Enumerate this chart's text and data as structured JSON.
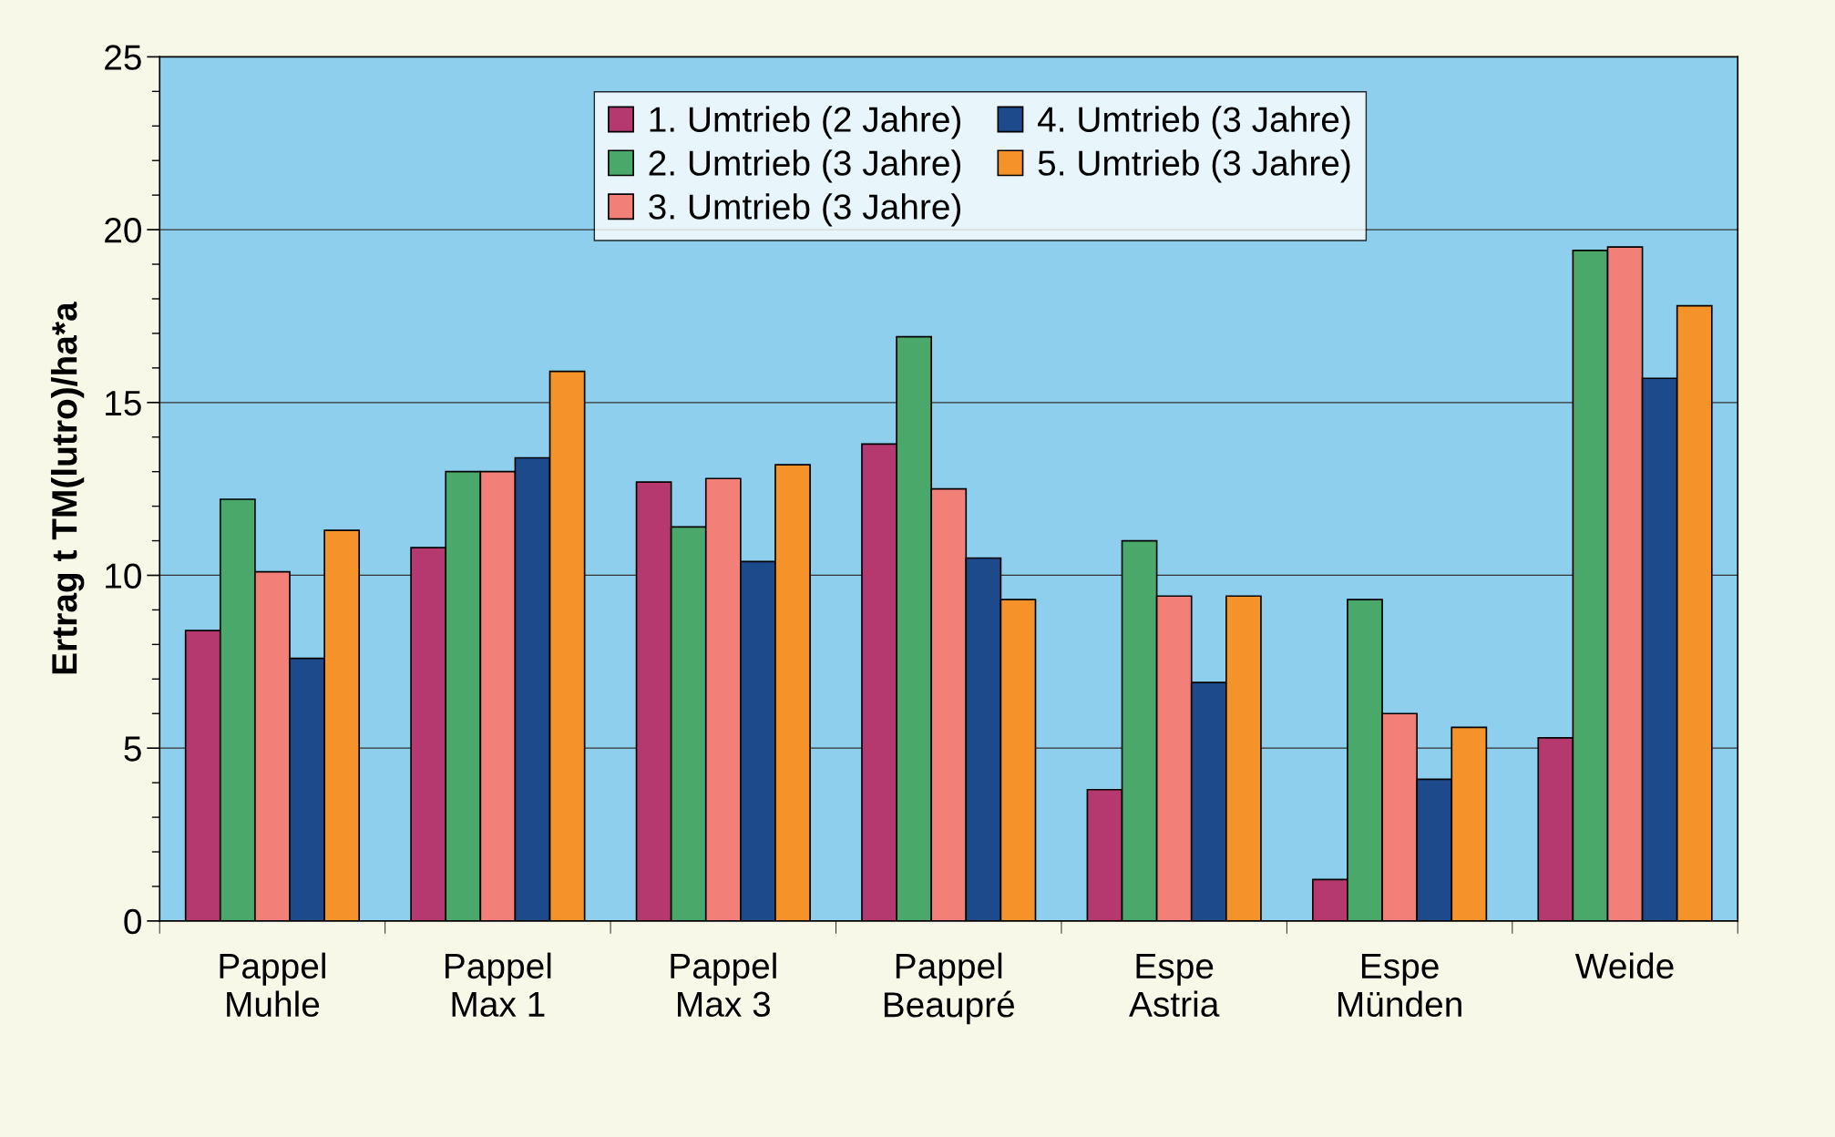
{
  "chart_data": {
    "type": "bar",
    "ylabel": "Ertrag t TM(lutro)/ha*a",
    "categories": [
      "Pappel\nMuhle",
      "Pappel\nMax 1",
      "Pappel\nMax 3",
      "Pappel\nBeaupré",
      "Espe\nAstria",
      "Espe\nMünden",
      "Weide"
    ],
    "series": [
      {
        "name": "1. Umtrieb (2 Jahre)",
        "color": "#b5386f",
        "values": [
          8.4,
          10.8,
          12.7,
          13.8,
          3.8,
          1.2,
          5.3
        ]
      },
      {
        "name": "2. Umtrieb (3 Jahre)",
        "color": "#4aa86b",
        "values": [
          12.2,
          13.0,
          11.4,
          16.9,
          11.0,
          9.3,
          19.4
        ]
      },
      {
        "name": "3. Umtrieb (3 Jahre)",
        "color": "#f28078",
        "values": [
          10.1,
          13.0,
          12.8,
          12.5,
          9.4,
          6.0,
          19.5
        ]
      },
      {
        "name": "4. Umtrieb (3 Jahre)",
        "color": "#1c4a8a",
        "values": [
          7.6,
          13.4,
          10.4,
          10.5,
          6.9,
          4.1,
          15.7
        ]
      },
      {
        "name": "5. Umtrieb (3 Jahre)",
        "color": "#f5922a",
        "values": [
          11.3,
          15.9,
          13.2,
          9.3,
          9.4,
          5.6,
          17.8
        ]
      }
    ],
    "ylim": [
      0,
      25
    ],
    "yticks": [
      0,
      5,
      10,
      15,
      20,
      25
    ],
    "grid": "y",
    "legend": "top"
  }
}
